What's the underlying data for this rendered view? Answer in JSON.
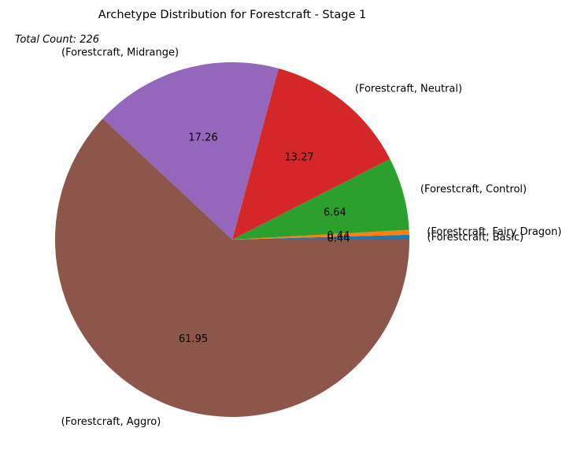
{
  "chart_data": {
    "type": "pie",
    "title": "Archetype Distribution for Forestcraft - Stage 1",
    "annotation": "Total Count: 226",
    "start_angle_deg": 0,
    "direction": "counterclockwise",
    "slices": [
      {
        "label": "(Forestcraft, Basic)",
        "value": 0.44,
        "pct_label": "0.44",
        "color": "#1f77b4"
      },
      {
        "label": "(Forestcraft, Fairy Dragon)",
        "value": 0.44,
        "pct_label": "0.44",
        "color": "#ff7f0e"
      },
      {
        "label": "(Forestcraft, Control)",
        "value": 6.64,
        "pct_label": "6.64",
        "color": "#2ca02c"
      },
      {
        "label": "(Forestcraft, Neutral)",
        "value": 13.27,
        "pct_label": "13.27",
        "color": "#d62728"
      },
      {
        "label": "(Forestcraft, Midrange)",
        "value": 17.26,
        "pct_label": "17.26",
        "color": "#9467bd"
      },
      {
        "label": "(Forestcraft, Aggro)",
        "value": 61.95,
        "pct_label": "61.95",
        "color": "#8c564b"
      }
    ]
  }
}
